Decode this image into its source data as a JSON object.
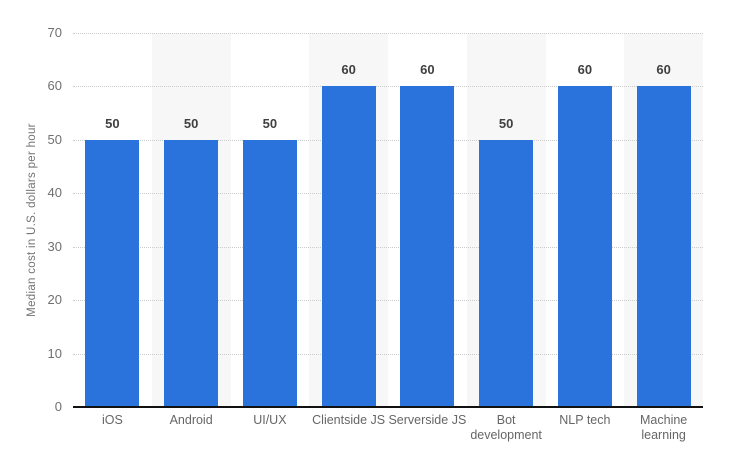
{
  "chart_data": {
    "type": "bar",
    "title": "",
    "categories": [
      "iOS",
      "Android",
      "UI/UX",
      "Clientside JS",
      "Serverside JS",
      "Bot\ndevelopment",
      "NLP tech",
      "Machine\nlearning"
    ],
    "values": [
      50,
      50,
      50,
      60,
      60,
      50,
      60,
      60
    ],
    "xlabel": "",
    "ylabel": "Median cost in U.S. dollars per hour",
    "ylim": [
      0,
      70
    ],
    "yticks": [
      0,
      10,
      20,
      30,
      40,
      50,
      60,
      70
    ],
    "grid": "horizontal dotted",
    "legend_position": "none",
    "band_pattern": "alternating columns shaded (even columns from second)",
    "colors": {
      "bar": "#2a73dc",
      "band": "#f7f7f7",
      "gridline": "#cccccc",
      "axis_line": "#111111",
      "tick_label": "#707070",
      "x_label": "#666666",
      "value_label": "#404040",
      "y_axis_title": "#737373",
      "background": "#ffffff"
    }
  }
}
